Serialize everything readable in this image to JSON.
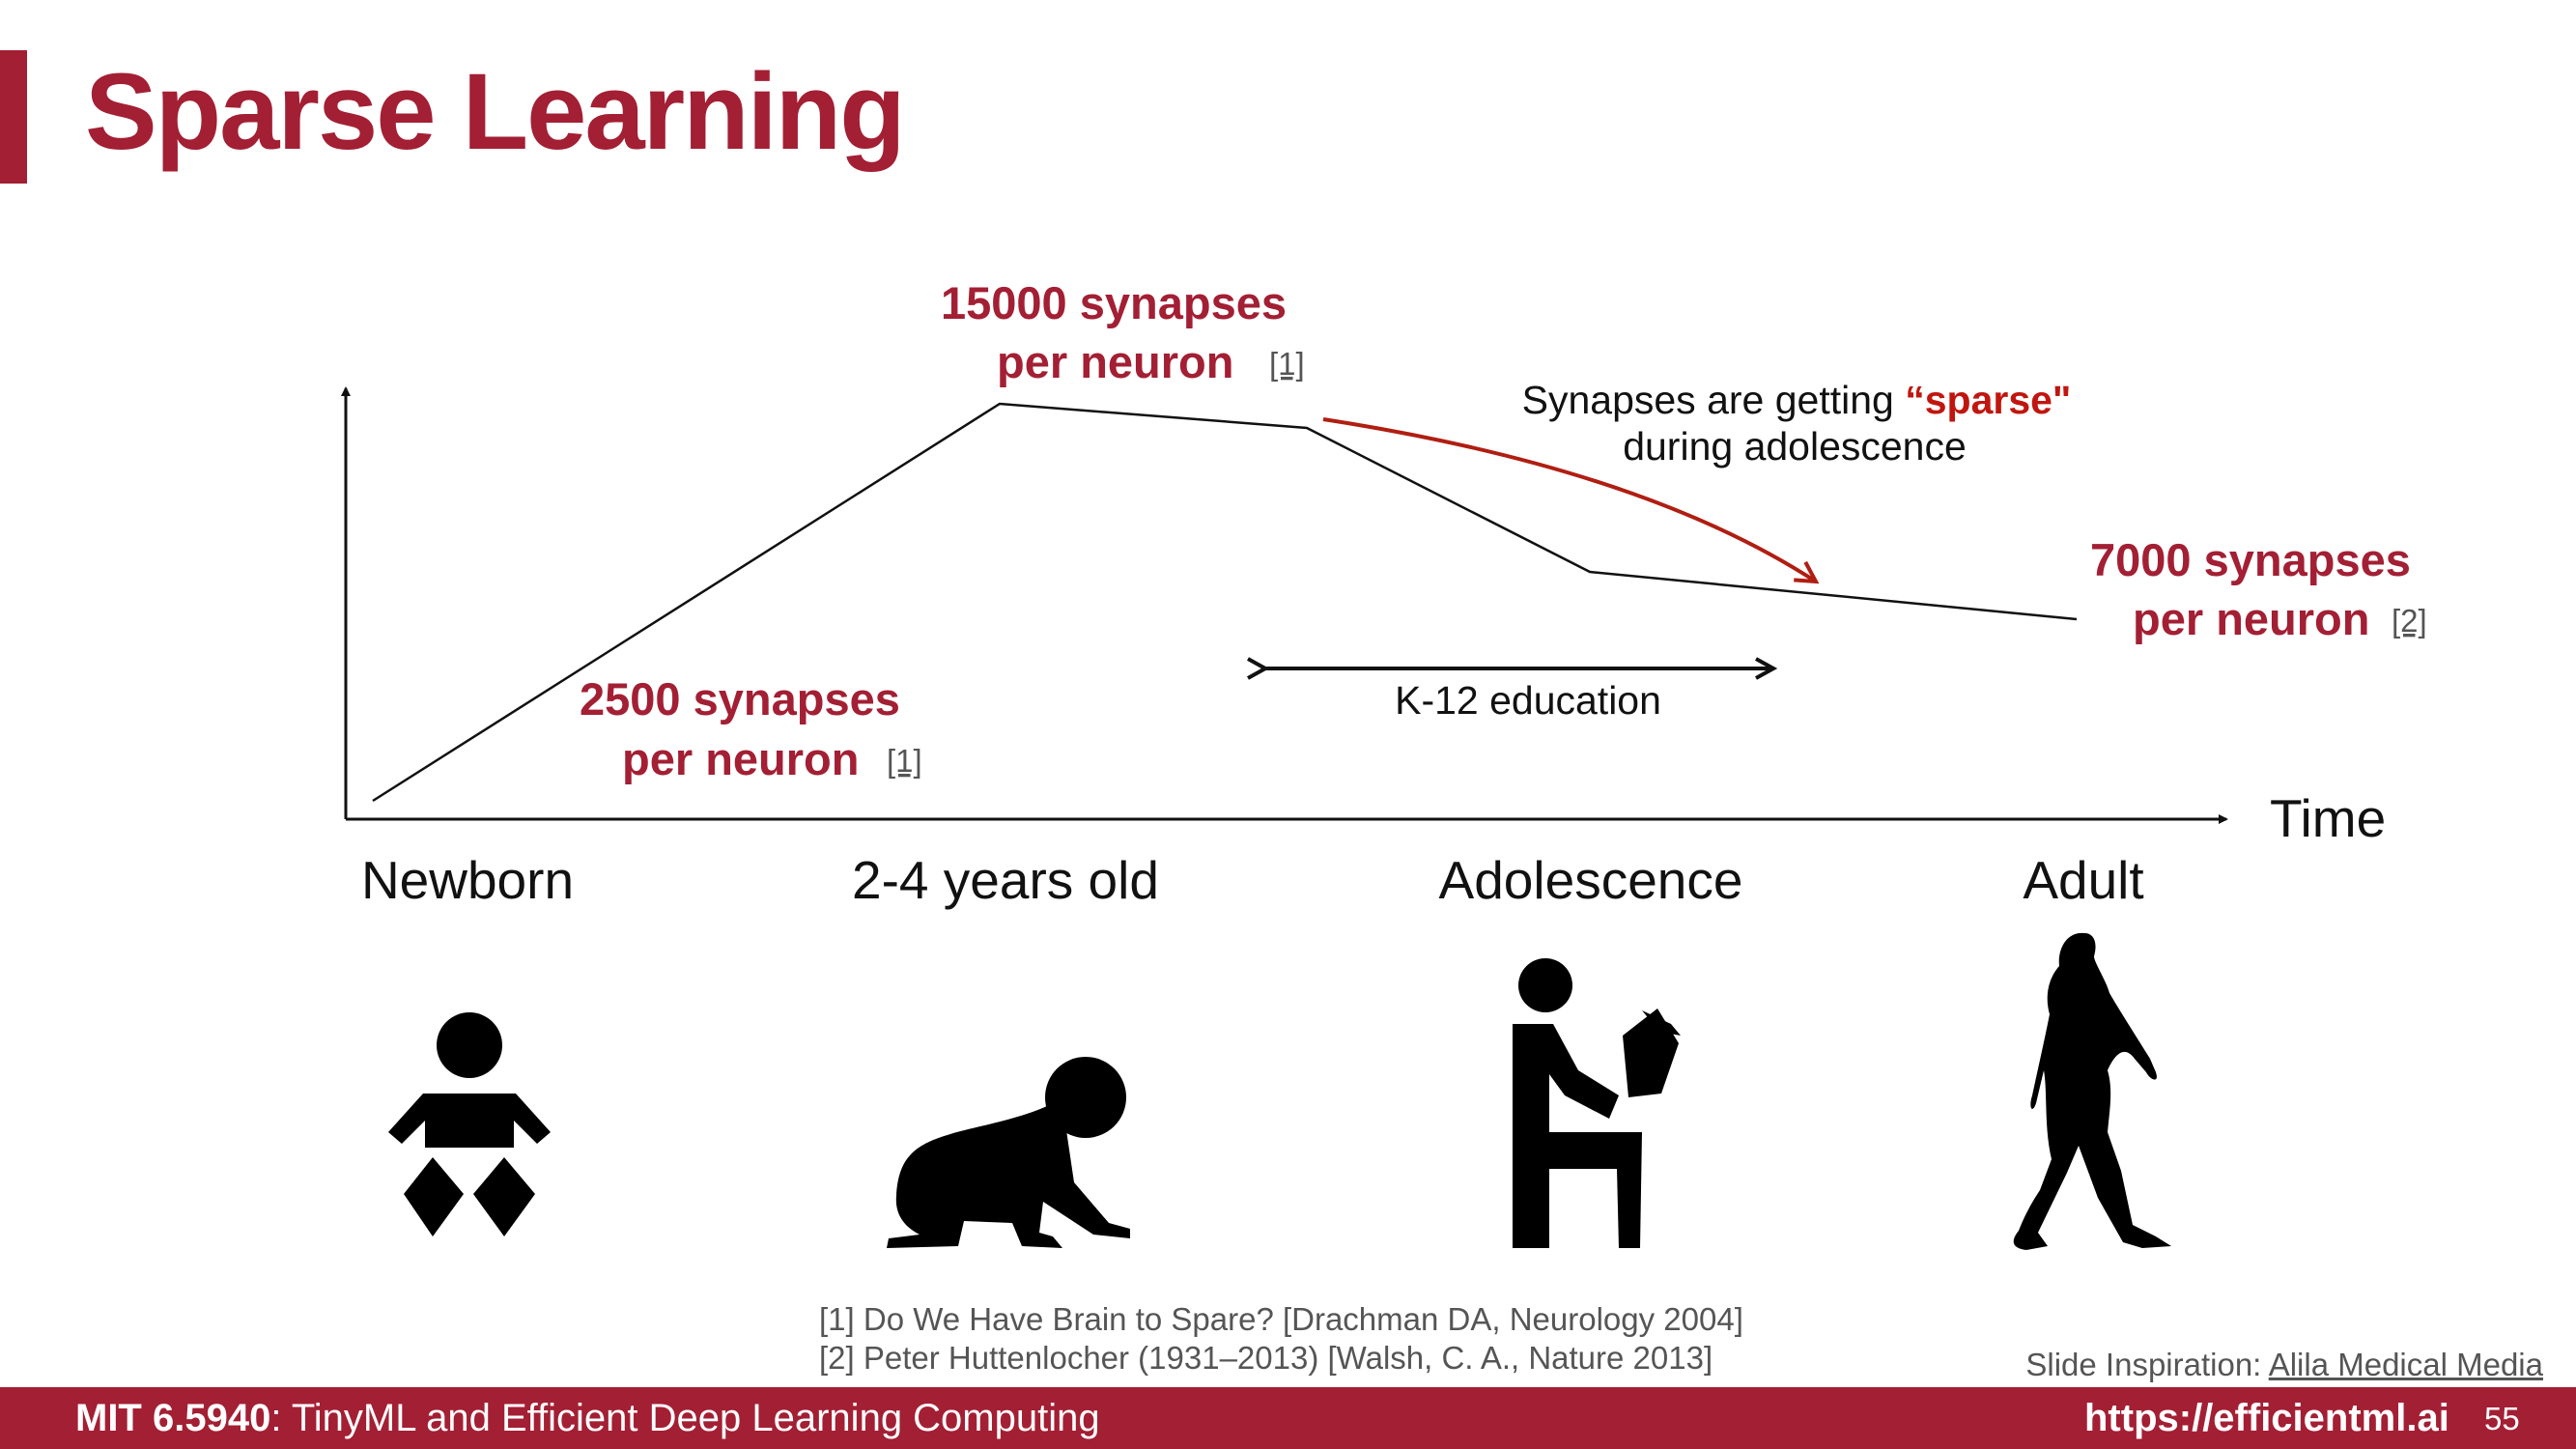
{
  "slide": {
    "title": "Sparse Learning",
    "page_number": "55",
    "course_code": "MIT 6.5940",
    "course_title": ": TinyML and Efficient Deep Learning Computing",
    "url": "https://efficientml.ai",
    "brand_color": "#a31f34"
  },
  "diagram": {
    "axis_label": "Time",
    "peak_value": "15000 synapses",
    "peak_unit": "per neuron",
    "peak_ref": "[1]",
    "start_value": "2500 synapses",
    "start_unit": "per neuron",
    "start_ref": "[1]",
    "end_value": "7000 synapses",
    "end_unit": "per neuron",
    "end_ref": "[2]",
    "sparse_note_prefix": "Synapses are getting ",
    "sparse_note_highlight": "“sparse\"",
    "sparse_note_line2": "during adolescence",
    "education_label": "K-12 education",
    "stages": [
      {
        "label": "Newborn",
        "icon": "baby-icon"
      },
      {
        "label": "2-4 years old",
        "icon": "crawling-baby-icon"
      },
      {
        "label": "Adolescence",
        "icon": "reading-student-icon"
      },
      {
        "label": "Adult",
        "icon": "walking-woman-icon"
      }
    ]
  },
  "references": [
    "[1] Do We Have Brain to Spare? [Drachman DA, Neurology 2004]",
    "[2] Peter Huttenlocher (1931–2013) [Walsh, C. A., Nature 2013]"
  ],
  "inspiration": {
    "prefix": "Slide Inspiration: ",
    "link": "Alila Medical Media"
  }
}
